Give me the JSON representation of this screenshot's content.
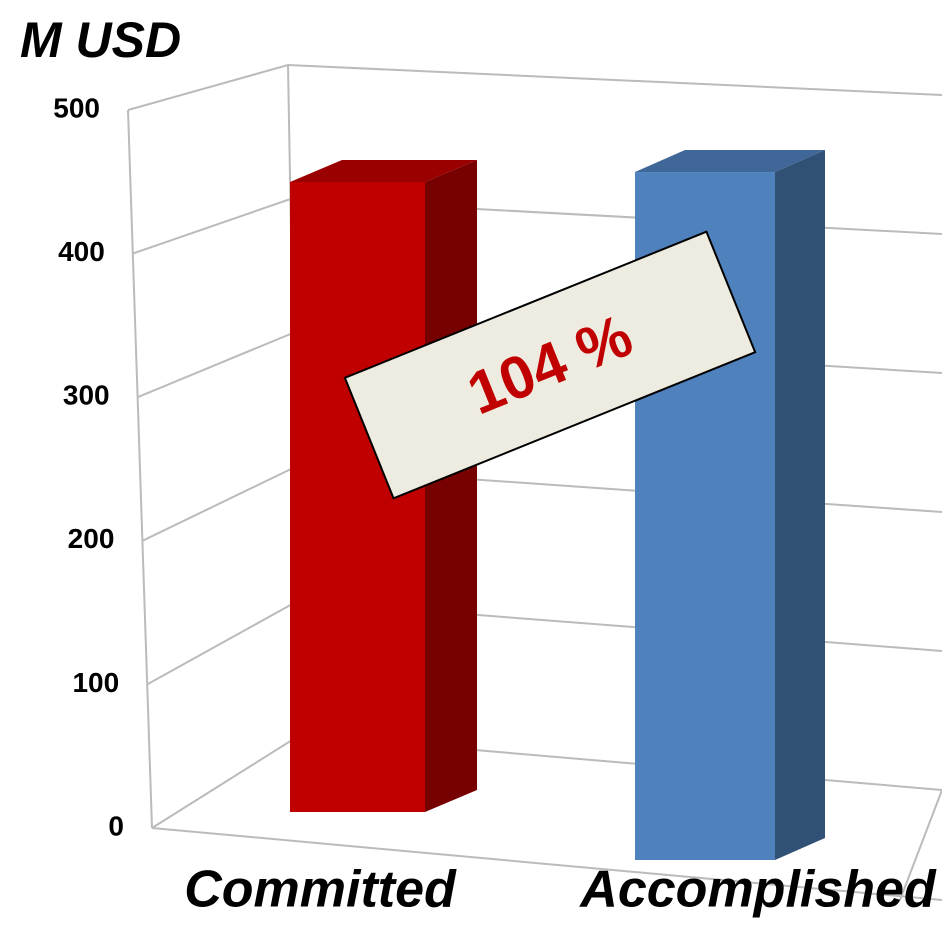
{
  "chart_data": {
    "type": "bar3d",
    "ylabel": "M USD",
    "annotation": "104 %",
    "categories": [
      "Committed",
      "Accomplished"
    ],
    "values": [
      450,
      468
    ],
    "colors": [
      "#c00000",
      "#4f81bd"
    ],
    "ylim": [
      0,
      500
    ],
    "yticks": [
      0,
      100,
      200,
      300,
      400,
      500
    ],
    "grid": true
  }
}
